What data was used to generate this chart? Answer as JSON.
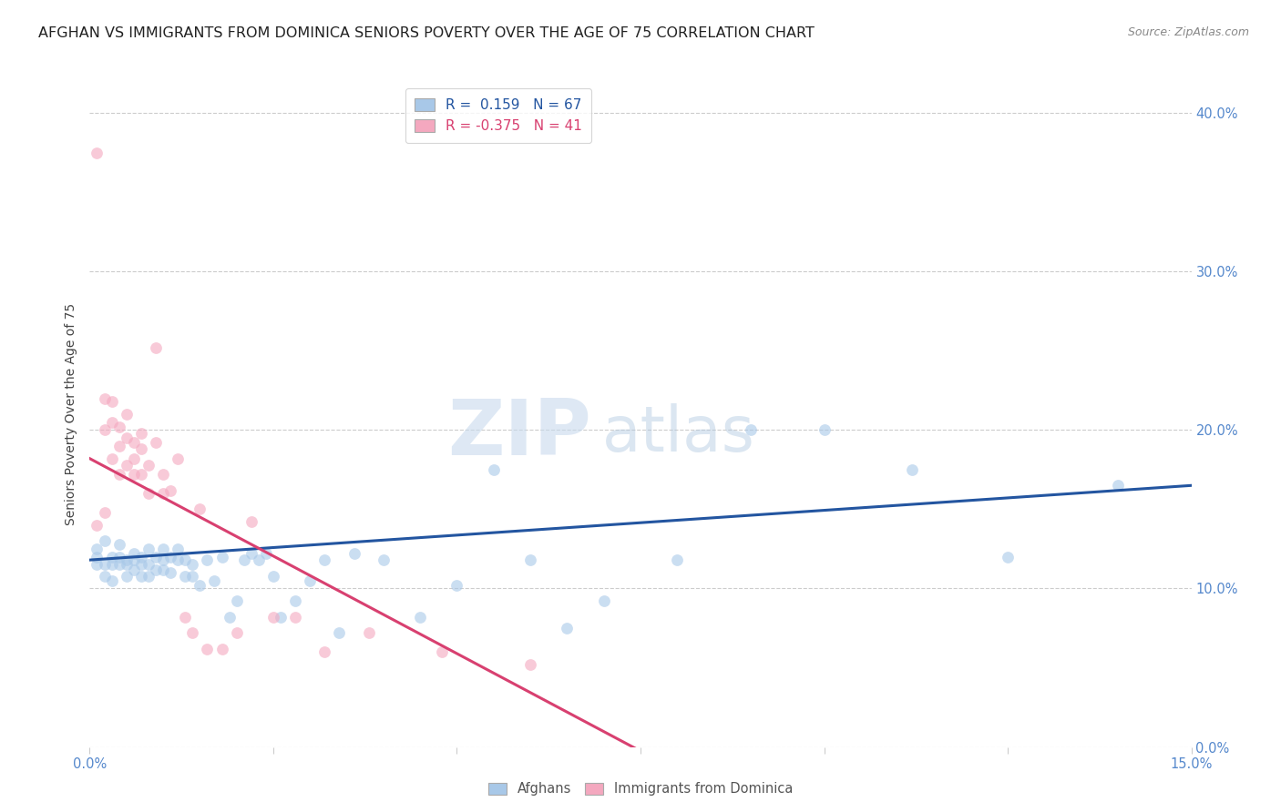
{
  "title": "AFGHAN VS IMMIGRANTS FROM DOMINICA SENIORS POVERTY OVER THE AGE OF 75 CORRELATION CHART",
  "source": "Source: ZipAtlas.com",
  "ylabel": "Seniors Poverty Over the Age of 75",
  "xlim": [
    0.0,
    0.15
  ],
  "ylim": [
    0.0,
    0.42
  ],
  "xticks": [
    0.0,
    0.025,
    0.05,
    0.075,
    0.1,
    0.125,
    0.15
  ],
  "xtick_labels": [
    "0.0%",
    "",
    "",
    "",
    "",
    "",
    "15.0%"
  ],
  "yticks": [
    0.0,
    0.1,
    0.2,
    0.3,
    0.4
  ],
  "ytick_right_labels": [
    "0.0%",
    "10.0%",
    "20.0%",
    "30.0%",
    "40.0%"
  ],
  "blue_scatter_color": "#a8c8e8",
  "pink_scatter_color": "#f4a8bf",
  "blue_line_color": "#2355a0",
  "pink_line_color": "#d84070",
  "tick_color": "#5588cc",
  "grid_color": "#cccccc",
  "bg_color": "#ffffff",
  "legend_r_blue": "R =  0.159   N = 67",
  "legend_r_pink": "R = -0.375   N = 41",
  "afghans_x": [
    0.001,
    0.001,
    0.001,
    0.002,
    0.002,
    0.002,
    0.003,
    0.003,
    0.003,
    0.004,
    0.004,
    0.004,
    0.005,
    0.005,
    0.005,
    0.006,
    0.006,
    0.006,
    0.007,
    0.007,
    0.007,
    0.008,
    0.008,
    0.008,
    0.009,
    0.009,
    0.01,
    0.01,
    0.01,
    0.011,
    0.011,
    0.012,
    0.012,
    0.013,
    0.013,
    0.014,
    0.014,
    0.015,
    0.016,
    0.017,
    0.018,
    0.019,
    0.02,
    0.021,
    0.022,
    0.023,
    0.024,
    0.025,
    0.026,
    0.028,
    0.03,
    0.032,
    0.034,
    0.036,
    0.04,
    0.045,
    0.05,
    0.055,
    0.06,
    0.065,
    0.07,
    0.08,
    0.09,
    0.1,
    0.112,
    0.125,
    0.14
  ],
  "afghans_y": [
    0.125,
    0.115,
    0.12,
    0.13,
    0.115,
    0.108,
    0.12,
    0.115,
    0.105,
    0.12,
    0.128,
    0.115,
    0.118,
    0.108,
    0.115,
    0.122,
    0.112,
    0.118,
    0.115,
    0.108,
    0.12,
    0.115,
    0.125,
    0.108,
    0.12,
    0.112,
    0.125,
    0.112,
    0.118,
    0.12,
    0.11,
    0.118,
    0.125,
    0.118,
    0.108,
    0.115,
    0.108,
    0.102,
    0.118,
    0.105,
    0.12,
    0.082,
    0.092,
    0.118,
    0.122,
    0.118,
    0.122,
    0.108,
    0.082,
    0.092,
    0.105,
    0.118,
    0.072,
    0.122,
    0.118,
    0.082,
    0.102,
    0.175,
    0.118,
    0.075,
    0.092,
    0.118,
    0.2,
    0.2,
    0.175,
    0.12,
    0.165
  ],
  "dominica_x": [
    0.001,
    0.001,
    0.002,
    0.002,
    0.002,
    0.003,
    0.003,
    0.003,
    0.004,
    0.004,
    0.004,
    0.005,
    0.005,
    0.005,
    0.006,
    0.006,
    0.006,
    0.007,
    0.007,
    0.007,
    0.008,
    0.008,
    0.009,
    0.009,
    0.01,
    0.01,
    0.011,
    0.012,
    0.013,
    0.014,
    0.015,
    0.016,
    0.018,
    0.02,
    0.022,
    0.025,
    0.028,
    0.032,
    0.038,
    0.048,
    0.06
  ],
  "dominica_y": [
    0.375,
    0.14,
    0.22,
    0.2,
    0.148,
    0.218,
    0.205,
    0.182,
    0.202,
    0.19,
    0.172,
    0.21,
    0.195,
    0.178,
    0.192,
    0.172,
    0.182,
    0.198,
    0.172,
    0.188,
    0.178,
    0.16,
    0.192,
    0.252,
    0.172,
    0.16,
    0.162,
    0.182,
    0.082,
    0.072,
    0.15,
    0.062,
    0.062,
    0.072,
    0.142,
    0.082,
    0.082,
    0.06,
    0.072,
    0.06,
    0.052
  ],
  "blue_trend_x": [
    0.0,
    0.15
  ],
  "blue_trend_y": [
    0.118,
    0.165
  ],
  "pink_trend_x": [
    0.0,
    0.076
  ],
  "pink_trend_y": [
    0.182,
    -0.005
  ],
  "title_fontsize": 11.5,
  "source_fontsize": 9,
  "tick_fontsize": 10.5,
  "ylabel_fontsize": 10,
  "legend_fontsize": 11,
  "scatter_size": 85,
  "scatter_alpha": 0.6
}
